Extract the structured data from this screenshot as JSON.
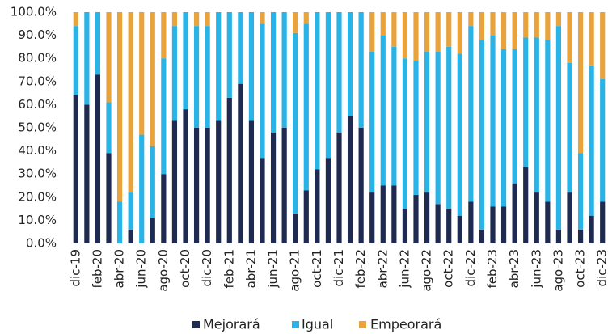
{
  "chart_data": {
    "type": "stacked_bar",
    "categories": [
      "dic-19",
      null,
      "feb-20",
      null,
      "abr-20",
      null,
      "jun-20",
      null,
      "ago-20",
      null,
      "oct-20",
      null,
      "dic-20",
      null,
      "feb-21",
      null,
      "abr-21",
      null,
      "jun-21",
      null,
      "ago-21",
      null,
      "oct-21",
      null,
      "dic-21",
      null,
      "feb-22",
      null,
      "abr-22",
      null,
      "jun-22",
      null,
      "ago-22",
      null,
      "oct-22",
      null,
      "dic-22",
      null,
      "feb-23",
      null,
      "abr-23",
      null,
      "jun-23",
      null,
      "ago-23",
      null,
      "oct-23",
      null,
      "dic-23"
    ],
    "series": [
      {
        "name": "Mejorará",
        "color": "#1e2a4f",
        "values": [
          64,
          60,
          73,
          39,
          0,
          6,
          0,
          11,
          30,
          53,
          58,
          50,
          50,
          53,
          63,
          69,
          53,
          37,
          48,
          50,
          13,
          23,
          32,
          37,
          48,
          55,
          50,
          22,
          25,
          25,
          15,
          21,
          22,
          17,
          15,
          12,
          18,
          6,
          16,
          16,
          26,
          33,
          22,
          18,
          6,
          22,
          6,
          12,
          18
        ]
      },
      {
        "name": "Igual",
        "color": "#29b3e6",
        "values": [
          30,
          40,
          27,
          22,
          18,
          16,
          47,
          31,
          50,
          41,
          42,
          44,
          44,
          47,
          37,
          31,
          47,
          58,
          52,
          50,
          78,
          72,
          68,
          63,
          52,
          45,
          50,
          61,
          65,
          60,
          65,
          58,
          61,
          66,
          70,
          70,
          76,
          82,
          74,
          68,
          58,
          56,
          67,
          70,
          88,
          56,
          33,
          65,
          53
        ]
      },
      {
        "name": "Empeorará",
        "color": "#e8a33d",
        "values": [
          6,
          0,
          0,
          39,
          82,
          78,
          53,
          58,
          20,
          6,
          0,
          6,
          6,
          0,
          0,
          0,
          0,
          5,
          0,
          0,
          9,
          5,
          0,
          0,
          0,
          0,
          0,
          17,
          10,
          15,
          20,
          21,
          17,
          17,
          15,
          18,
          6,
          12,
          10,
          16,
          16,
          11,
          11,
          12,
          6,
          22,
          61,
          23,
          29
        ]
      }
    ],
    "ylim": [
      0,
      100
    ],
    "yticks": [
      {
        "value": 0,
        "label": "0.0%"
      },
      {
        "value": 10,
        "label": "10.0%"
      },
      {
        "value": 20,
        "label": "20.0%"
      },
      {
        "value": 30,
        "label": "30.0%"
      },
      {
        "value": 40,
        "label": "40.0%"
      },
      {
        "value": 50,
        "label": "50.0%"
      },
      {
        "value": 60,
        "label": "60.0%"
      },
      {
        "value": 70,
        "label": "70.0%"
      },
      {
        "value": 80,
        "label": "80.0%"
      },
      {
        "value": 90,
        "label": "90.0%"
      },
      {
        "value": 100,
        "label": "100.0%"
      }
    ],
    "grid": false,
    "legend": "bottom"
  }
}
